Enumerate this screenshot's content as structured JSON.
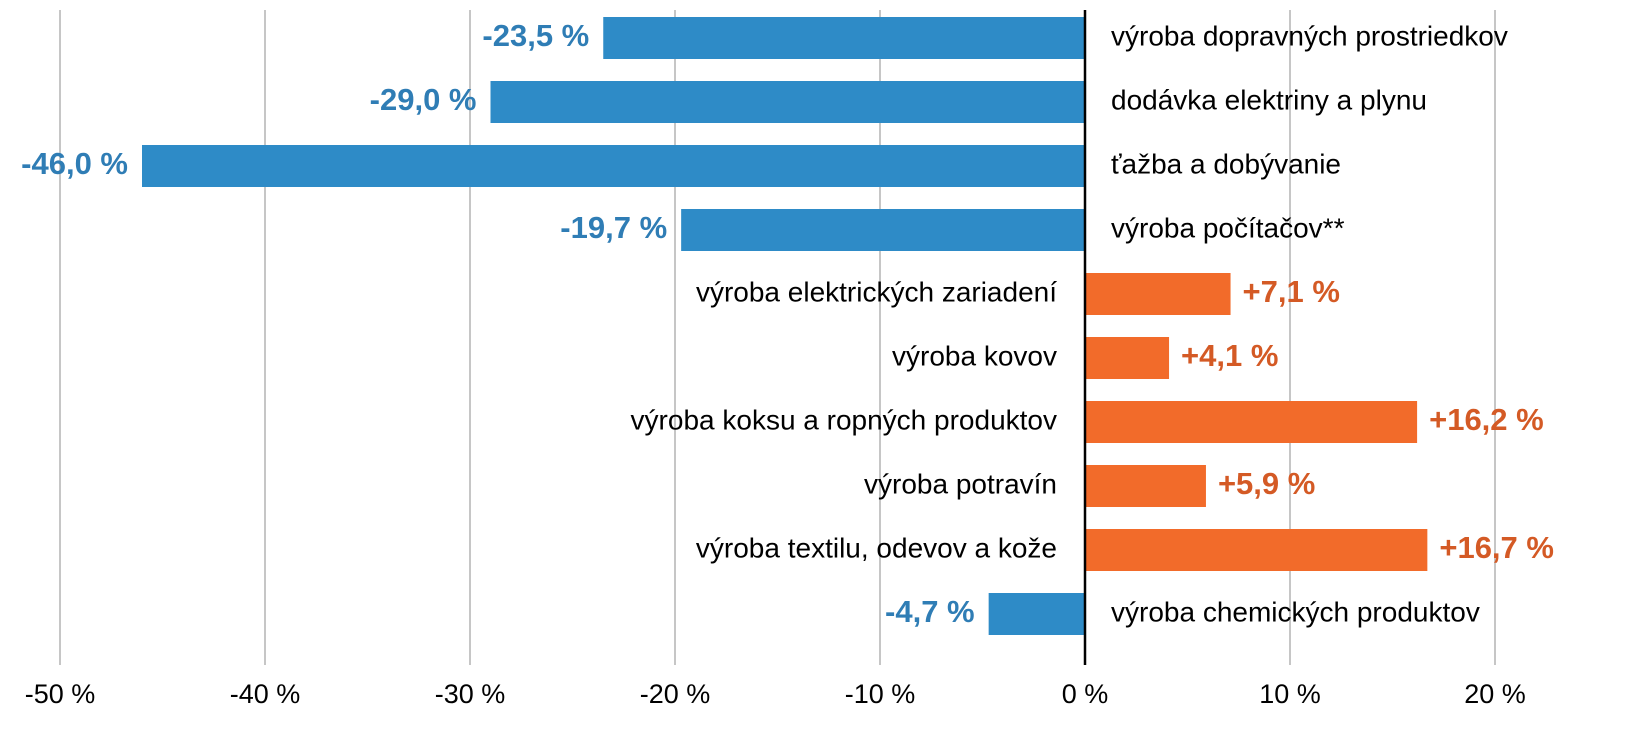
{
  "chart_data": {
    "type": "hbar",
    "categories": [
      "výroba dopravných prostriedkov",
      "dodávka elektriny a plynu",
      "ťažba a dobývanie",
      "výroba počítačov**",
      "výroba elektrických zariadení",
      "výroba kovov",
      "výroba koksu a ropných produktov",
      "výroba potravín",
      "výroba textilu, odevov a kože",
      "výroba chemických produktov"
    ],
    "values": [
      -23.5,
      -29.0,
      -46.0,
      -19.7,
      7.1,
      4.1,
      16.2,
      5.9,
      16.7,
      -4.7
    ],
    "value_labels": [
      "-23,5 %",
      "-29,0 %",
      "-46,0 %",
      "-19,7 %",
      "+7,1 %",
      "+4,1 %",
      "+16,2 %",
      "+5,9 %",
      "+16,7 %",
      "-4,7 %"
    ],
    "negative_color": "#2e8bc7",
    "positive_color": "#f26b2a",
    "xlim": [
      -50,
      20
    ],
    "xticks": [
      {
        "value": -50,
        "label": "-50 %"
      },
      {
        "value": -40,
        "label": "-40 %"
      },
      {
        "value": -30,
        "label": "-30 %"
      },
      {
        "value": -20,
        "label": "-20 %"
      },
      {
        "value": -10,
        "label": "-10 %"
      },
      {
        "value": 0,
        "label": "0 %"
      },
      {
        "value": 10,
        "label": "10 %"
      },
      {
        "value": 20,
        "label": "20 %"
      }
    ],
    "grid": true
  }
}
